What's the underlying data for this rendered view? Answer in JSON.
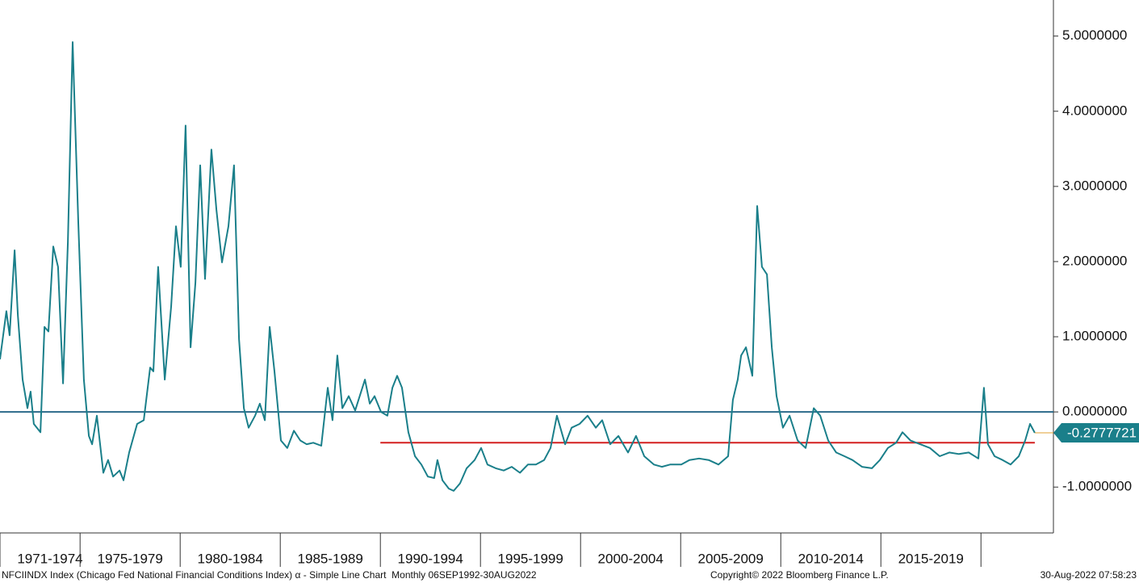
{
  "chart_data": {
    "type": "line",
    "x": [
      1971.0,
      1971.32,
      1971.48,
      1971.73,
      1971.89,
      1972.13,
      1972.37,
      1972.53,
      1972.69,
      1973.02,
      1973.22,
      1973.42,
      1973.66,
      1973.9,
      1974.15,
      1974.39,
      1974.63,
      1974.91,
      1975.19,
      1975.44,
      1975.6,
      1975.84,
      1976.16,
      1976.4,
      1976.65,
      1976.97,
      1977.17,
      1977.45,
      1977.85,
      1978.18,
      1978.5,
      1978.66,
      1978.9,
      1979.23,
      1979.55,
      1979.79,
      1980.03,
      1980.27,
      1980.52,
      1980.76,
      1981.0,
      1981.24,
      1981.56,
      1981.81,
      1982.09,
      1982.41,
      1982.69,
      1982.94,
      1983.18,
      1983.42,
      1983.74,
      1983.98,
      1984.23,
      1984.47,
      1984.71,
      1985.03,
      1985.35,
      1985.68,
      1986.0,
      1986.32,
      1986.65,
      1987.05,
      1987.37,
      1987.61,
      1987.85,
      1988.1,
      1988.42,
      1988.74,
      1989.23,
      1989.47,
      1989.71,
      1990.03,
      1990.35,
      1990.6,
      1990.84,
      1991.08,
      1991.4,
      1991.73,
      1992.05,
      1992.37,
      1992.69,
      1992.85,
      1993.1,
      1993.42,
      1993.66,
      1993.98,
      1994.31,
      1994.71,
      1995.03,
      1995.35,
      1995.76,
      1996.16,
      1996.56,
      1996.97,
      1997.37,
      1997.77,
      1998.18,
      1998.5,
      1998.82,
      1999.23,
      1999.55,
      1999.95,
      2000.35,
      2000.76,
      2001.08,
      2001.48,
      2001.89,
      2002.37,
      2002.77,
      2003.18,
      2003.66,
      2004.06,
      2004.47,
      2005.03,
      2005.44,
      2005.92,
      2006.4,
      2006.89,
      2007.37,
      2007.61,
      2007.85,
      2008.02,
      2008.26,
      2008.58,
      2008.82,
      2009.06,
      2009.31,
      2009.55,
      2009.79,
      2010.11,
      2010.44,
      2010.84,
      2011.24,
      2011.65,
      2011.97,
      2012.37,
      2012.77,
      2013.18,
      2013.58,
      2014.06,
      2014.55,
      2014.95,
      2015.35,
      2015.76,
      2016.08,
      2016.48,
      2016.97,
      2017.45,
      2017.94,
      2018.42,
      2018.9,
      2019.39,
      2019.87,
      2020.15,
      2020.35,
      2020.68,
      2021.08,
      2021.48,
      2021.89,
      2022.21,
      2022.45,
      2022.69
    ],
    "series": [
      {
        "name": "NFCIINDX Index",
        "color": "#1a7f8a",
        "values": [
          0.7,
          1.34,
          1.02,
          2.15,
          1.29,
          0.43,
          0.05,
          0.27,
          -0.16,
          -0.27,
          1.13,
          1.07,
          2.2,
          1.93,
          0.38,
          2.26,
          4.92,
          2.52,
          0.43,
          -0.32,
          -0.43,
          -0.05,
          -0.81,
          -0.64,
          -0.86,
          -0.78,
          -0.91,
          -0.54,
          -0.16,
          -0.11,
          0.59,
          0.54,
          1.93,
          0.43,
          1.4,
          2.47,
          1.93,
          3.81,
          0.86,
          1.72,
          3.28,
          1.77,
          3.49,
          2.69,
          1.99,
          2.47,
          3.28,
          0.97,
          0.05,
          -0.21,
          -0.05,
          0.11,
          -0.11,
          1.13,
          0.54,
          -0.38,
          -0.48,
          -0.25,
          -0.38,
          -0.43,
          -0.41,
          -0.45,
          0.32,
          -0.11,
          0.75,
          0.05,
          0.21,
          0.02,
          0.43,
          0.11,
          0.21,
          0.0,
          -0.05,
          0.32,
          0.48,
          0.32,
          -0.27,
          -0.59,
          -0.7,
          -0.86,
          -0.88,
          -0.64,
          -0.91,
          -1.02,
          -1.05,
          -0.95,
          -0.75,
          -0.64,
          -0.48,
          -0.7,
          -0.75,
          -0.78,
          -0.73,
          -0.81,
          -0.7,
          -0.7,
          -0.64,
          -0.48,
          -0.05,
          -0.43,
          -0.21,
          -0.16,
          -0.05,
          -0.21,
          -0.11,
          -0.43,
          -0.32,
          -0.54,
          -0.32,
          -0.59,
          -0.7,
          -0.73,
          -0.7,
          -0.7,
          -0.64,
          -0.62,
          -0.64,
          -0.7,
          -0.59,
          0.16,
          0.43,
          0.75,
          0.86,
          0.48,
          2.74,
          1.93,
          1.83,
          0.86,
          0.21,
          -0.21,
          -0.05,
          -0.38,
          -0.48,
          0.05,
          -0.05,
          -0.38,
          -0.54,
          -0.59,
          -0.64,
          -0.73,
          -0.75,
          -0.64,
          -0.48,
          -0.41,
          -0.27,
          -0.38,
          -0.43,
          -0.48,
          -0.59,
          -0.54,
          -0.56,
          -0.54,
          -0.62,
          0.32,
          -0.43,
          -0.59,
          -0.64,
          -0.7,
          -0.59,
          -0.38,
          -0.16,
          -0.2777721
        ]
      }
    ],
    "last_value_label": "-0.2777721",
    "xlim": [
      1971.0,
      2023.62
    ],
    "xticks": [
      {
        "value": 1971,
        "label": "1971-1974"
      },
      {
        "value": 1975,
        "label": "1975-1979"
      },
      {
        "value": 1980,
        "label": "1980-1984"
      },
      {
        "value": 1985,
        "label": "1985-1989"
      },
      {
        "value": 1990,
        "label": "1990-1994"
      },
      {
        "value": 1995,
        "label": "1995-1999"
      },
      {
        "value": 2000,
        "label": "2000-2004"
      },
      {
        "value": 2005,
        "label": "2005-2009"
      },
      {
        "value": 2010,
        "label": "2010-2014"
      },
      {
        "value": 2015,
        "label": "2015-2019"
      }
    ],
    "ylim": [
      -1.61,
      5.48
    ],
    "yticks": [
      {
        "value": 5,
        "label": "5.0000000"
      },
      {
        "value": 4,
        "label": "4.0000000"
      },
      {
        "value": 3,
        "label": "3.0000000"
      },
      {
        "value": 2,
        "label": "2.0000000"
      },
      {
        "value": 1,
        "label": "1.0000000"
      },
      {
        "value": 0,
        "label": "0.0000000"
      },
      {
        "value": -1,
        "label": "-1.0000000"
      }
    ],
    "reference_lines": [
      {
        "value": 0,
        "color": "#2b6a8a"
      },
      {
        "value": -0.41,
        "from": 1990,
        "color": "#d42020"
      }
    ],
    "footer": {
      "description": "NFCIINDX Index (Chicago Fed National Financial Conditions Index) α - Simple Line Chart  Monthly 06SEP1992-30AUG2022",
      "copyright": "Copyright© 2022 Bloomberg Finance L.P.",
      "timestamp": "30-Aug-2022 07:58:23"
    }
  }
}
